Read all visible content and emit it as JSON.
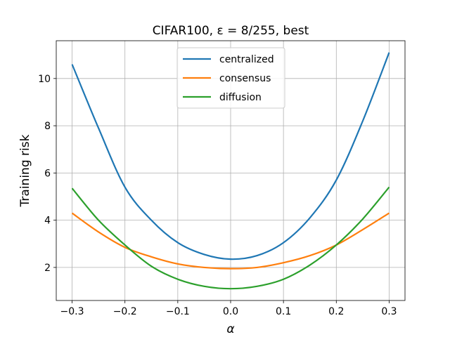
{
  "chart_data": {
    "type": "line",
    "title": "CIFAR100, ε = 8/255, best",
    "xlabel": "α",
    "ylabel": "Training risk",
    "xlim": [
      -0.33,
      0.33
    ],
    "ylim": [
      0.6,
      11.6
    ],
    "xticks": [
      -0.3,
      -0.2,
      -0.1,
      0.0,
      0.1,
      0.2,
      0.3
    ],
    "xtick_labels": [
      "−0.3",
      "−0.2",
      "−0.1",
      "0.0",
      "0.1",
      "0.2",
      "0.3"
    ],
    "yticks": [
      2,
      4,
      6,
      8,
      10
    ],
    "ytick_labels": [
      "2",
      "4",
      "6",
      "8",
      "10"
    ],
    "grid": true,
    "legend_position": "top-center",
    "x": [
      -0.3,
      -0.25,
      -0.2,
      -0.15,
      -0.1,
      -0.05,
      0.0,
      0.05,
      0.1,
      0.15,
      0.2,
      0.25,
      0.3
    ],
    "series": [
      {
        "name": "centralized",
        "color": "#1f77b4",
        "values": [
          10.6,
          7.9,
          5.4,
          4.0,
          3.05,
          2.55,
          2.35,
          2.5,
          3.05,
          4.1,
          5.7,
          8.2,
          11.1
        ]
      },
      {
        "name": "consensus",
        "color": "#ff7f0e",
        "values": [
          4.3,
          3.5,
          2.85,
          2.45,
          2.15,
          2.0,
          1.95,
          2.0,
          2.2,
          2.5,
          2.95,
          3.6,
          4.3
        ]
      },
      {
        "name": "diffusion",
        "color": "#2ca02c",
        "values": [
          5.35,
          4.0,
          2.95,
          2.05,
          1.5,
          1.2,
          1.1,
          1.2,
          1.5,
          2.1,
          2.95,
          4.05,
          5.4
        ]
      }
    ]
  }
}
